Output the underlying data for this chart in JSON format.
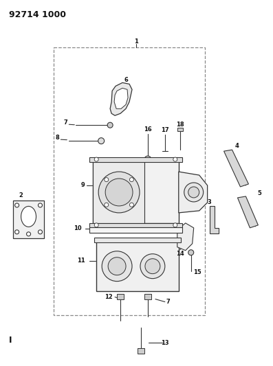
{
  "title": "92714 1000",
  "bg_color": "#ffffff",
  "lc": "#333333",
  "fig_width": 3.97,
  "fig_height": 5.33,
  "dpi": 100
}
